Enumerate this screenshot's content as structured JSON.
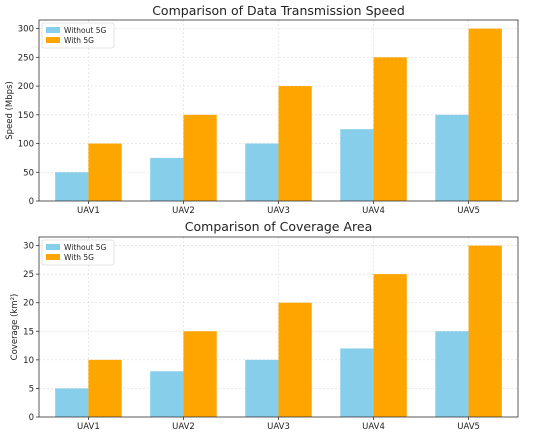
{
  "colors": {
    "without": "#87ceeb",
    "with": "#ffa500",
    "grid": "#d9d9d9",
    "axis": "#333333"
  },
  "chart_data": [
    {
      "type": "bar",
      "title": "Comparison of Data Transmission Speed",
      "xlabel": "",
      "ylabel": "Speed (Mbps)",
      "categories": [
        "UAV1",
        "UAV2",
        "UAV3",
        "UAV4",
        "UAV5"
      ],
      "series": [
        {
          "name": "Without 5G",
          "values": [
            50,
            75,
            100,
            125,
            150
          ]
        },
        {
          "name": "With 5G",
          "values": [
            100,
            150,
            200,
            250,
            300
          ]
        }
      ],
      "ylim": [
        0,
        315
      ],
      "yticks": [
        0,
        50,
        100,
        150,
        200,
        250,
        300
      ],
      "grid": true,
      "legend": "top-left"
    },
    {
      "type": "bar",
      "title": "Comparison of Coverage Area",
      "xlabel": "",
      "ylabel": "Coverage (km²)",
      "categories": [
        "UAV1",
        "UAV2",
        "UAV3",
        "UAV4",
        "UAV5"
      ],
      "series": [
        {
          "name": "Without 5G",
          "values": [
            5,
            8,
            10,
            12,
            15
          ]
        },
        {
          "name": "With 5G",
          "values": [
            10,
            15,
            20,
            25,
            30
          ]
        }
      ],
      "ylim": [
        0,
        31.5
      ],
      "yticks": [
        0,
        5,
        10,
        15,
        20,
        25,
        30
      ],
      "grid": true,
      "legend": "top-left"
    }
  ]
}
